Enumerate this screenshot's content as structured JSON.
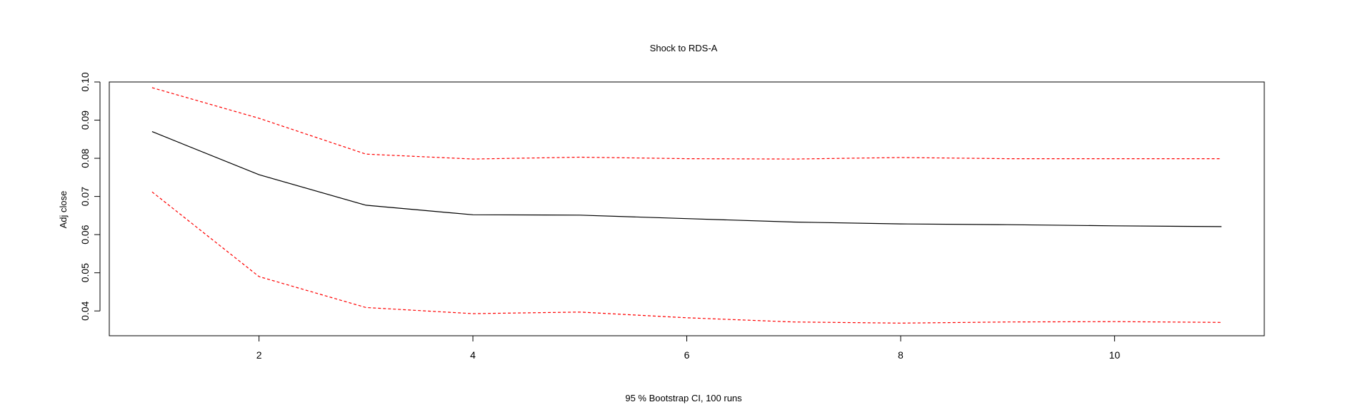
{
  "chart_data": {
    "type": "line",
    "title": "Shock to RDS-A",
    "xlabel": "95 % Bootstrap CI,  100 runs",
    "ylabel": "Adj close",
    "xlim": [
      0.6,
      11.4
    ],
    "ylim": [
      0.0335,
      0.1
    ],
    "x_ticks": [
      2,
      4,
      6,
      8,
      10
    ],
    "y_ticks": [
      0.04,
      0.05,
      0.06,
      0.07,
      0.08,
      0.09,
      0.1
    ],
    "y_tick_labels": [
      "0.04",
      "0.05",
      "0.06",
      "0.07",
      "0.08",
      "0.09",
      "0.10"
    ],
    "x": [
      1,
      2,
      3,
      4,
      5,
      6,
      7,
      8,
      9,
      10,
      11
    ],
    "grid": false,
    "legend": "none",
    "series": [
      {
        "role": "impulse-response",
        "color": "#000000",
        "dash": "solid",
        "values": [
          0.087,
          0.0757,
          0.0677,
          0.0652,
          0.0651,
          0.0642,
          0.0633,
          0.0628,
          0.0626,
          0.0623,
          0.0621
        ]
      },
      {
        "role": "upper-bound",
        "color": "#ff0000",
        "dash": "dashed",
        "values": [
          0.0985,
          0.0905,
          0.0811,
          0.0798,
          0.0803,
          0.0799,
          0.0798,
          0.0802,
          0.0799,
          0.0799,
          0.0799
        ]
      },
      {
        "role": "lower-bound",
        "color": "#ff0000",
        "dash": "dashed",
        "values": [
          0.0712,
          0.049,
          0.0409,
          0.0393,
          0.0397,
          0.0382,
          0.0371,
          0.0368,
          0.0371,
          0.0372,
          0.037
        ]
      }
    ]
  }
}
